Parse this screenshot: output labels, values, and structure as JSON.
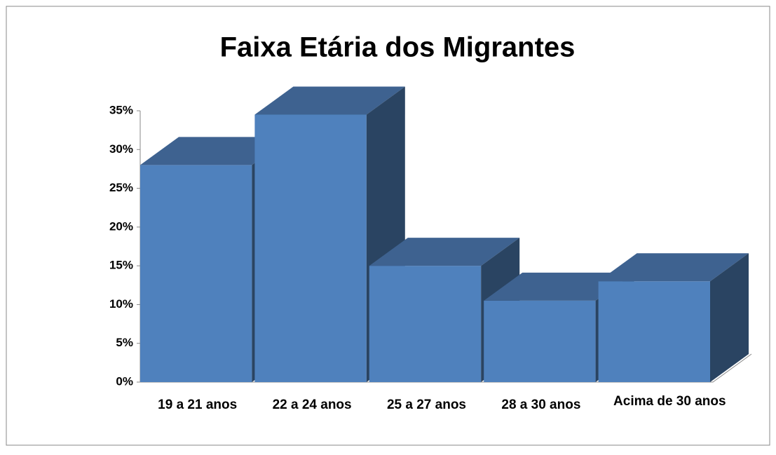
{
  "chart_data": {
    "type": "bar3d",
    "title": "Faixa Etária dos Migrantes",
    "categories": [
      "19 a 21 anos",
      "22 a 24 anos",
      "25 a 27 anos",
      "28 a 30 anos",
      "Acima de 30 anos"
    ],
    "values": [
      28,
      34.5,
      15,
      10.5,
      13
    ],
    "color": "#4f81bd",
    "ylim": [
      0,
      35
    ],
    "yticks": [
      {
        "value": 0,
        "label": "0%"
      },
      {
        "value": 5,
        "label": "5%"
      },
      {
        "value": 10,
        "label": "10%"
      },
      {
        "value": 15,
        "label": "15%"
      },
      {
        "value": 20,
        "label": "20%"
      },
      {
        "value": 25,
        "label": "25%"
      },
      {
        "value": 30,
        "label": "30%"
      },
      {
        "value": 35,
        "label": "35%"
      }
    ]
  }
}
